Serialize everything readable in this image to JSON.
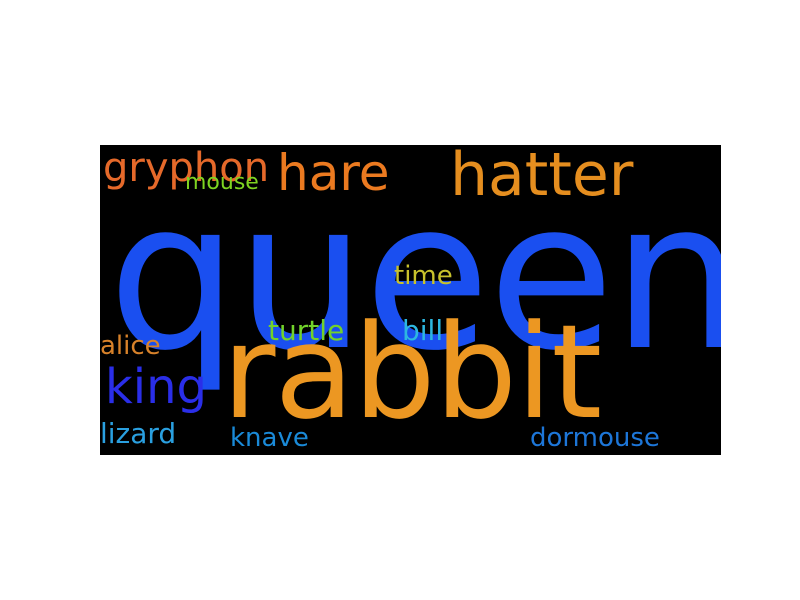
{
  "background": "#000000",
  "page_background": "#ffffff",
  "words": [
    {
      "key": "queen",
      "text": "queen",
      "color": "#1a4ff0"
    },
    {
      "key": "rabbit",
      "text": "rabbit",
      "color": "#ec9722"
    },
    {
      "key": "hatter",
      "text": "hatter",
      "color": "#e58e1f"
    },
    {
      "key": "hare",
      "text": "hare",
      "color": "#eb7a20"
    },
    {
      "key": "gryphon",
      "text": "gryphon",
      "color": "#e5692a"
    },
    {
      "key": "mouse",
      "text": "mouse",
      "color": "#7ed321"
    },
    {
      "key": "king",
      "text": "king",
      "color": "#2a2ee8"
    },
    {
      "key": "alice",
      "text": "alice",
      "color": "#d8822a"
    },
    {
      "key": "time",
      "text": "time",
      "color": "#c8c22c"
    },
    {
      "key": "turtle",
      "text": "turtle",
      "color": "#72d22a"
    },
    {
      "key": "bill",
      "text": "bill",
      "color": "#2db7e0"
    },
    {
      "key": "lizard",
      "text": "lizard",
      "color": "#2aa0e0"
    },
    {
      "key": "knave",
      "text": "knave",
      "color": "#1a8ad8"
    },
    {
      "key": "dormouse",
      "text": "dormouse",
      "color": "#1d76d8"
    }
  ]
}
